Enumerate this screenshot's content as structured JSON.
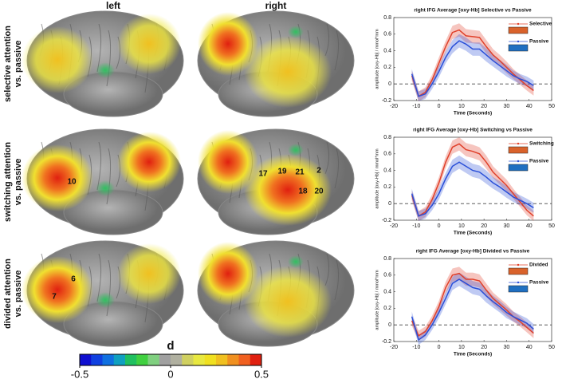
{
  "figure": {
    "columns": [
      "left",
      "right"
    ],
    "rows": [
      [
        "selective attention",
        "vs. passive"
      ],
      [
        "switching attention",
        "vs. passive"
      ],
      [
        "divided attention",
        "vs. passive"
      ]
    ],
    "brain_labels": [
      [
        "10"
      ],
      [
        "17",
        "19",
        "21",
        "2",
        "18",
        "20"
      ],
      [
        "6",
        "7"
      ]
    ]
  },
  "colorbar": {
    "label": "d",
    "lim": [
      -0.5,
      0.5
    ],
    "ticks": [
      -0.5,
      0,
      0.5
    ],
    "colors": [
      "#1010d0",
      "#1040e0",
      "#1070e0",
      "#10a0c0",
      "#20c060",
      "#40d040",
      "#80d080",
      "#a0a0a0",
      "#b0b0a0",
      "#d0d060",
      "#e8e840",
      "#f0e020",
      "#f0c020",
      "#f09020",
      "#f06020",
      "#e02010"
    ]
  },
  "chart_data": [
    {
      "type": "line",
      "title": "right IFG Average [oxy-Hb] Selective vs Passive",
      "x_label": "Time (Seconds)",
      "y_label": "amplitude [oxy-Hb] / mmol*mm",
      "x": [
        -12,
        -9,
        -6,
        -3,
        0,
        3,
        6,
        9,
        12,
        15,
        18,
        21,
        24,
        27,
        30,
        33,
        36,
        39,
        42
      ],
      "series": [
        {
          "name": "Selective",
          "color": "#e0402a",
          "patch_color": "#d9622b",
          "values": [
            0.1,
            -0.15,
            -0.1,
            0.05,
            0.25,
            0.45,
            0.62,
            0.65,
            0.58,
            0.57,
            0.56,
            0.45,
            0.35,
            0.28,
            0.2,
            0.12,
            0.05,
            -0.02,
            -0.08
          ],
          "errors": [
            0.06,
            0.06,
            0.06,
            0.06,
            0.07,
            0.07,
            0.08,
            0.08,
            0.08,
            0.08,
            0.08,
            0.08,
            0.07,
            0.07,
            0.07,
            0.06,
            0.06,
            0.06,
            0.06
          ]
        },
        {
          "name": "Passive",
          "color": "#2a4fd8",
          "patch_color": "#1f6fc1",
          "values": [
            0.12,
            -0.15,
            -0.12,
            0.0,
            0.15,
            0.32,
            0.45,
            0.52,
            0.48,
            0.42,
            0.42,
            0.35,
            0.28,
            0.22,
            0.16,
            0.1,
            0.06,
            0.03,
            -0.02
          ],
          "errors": [
            0.06,
            0.06,
            0.06,
            0.06,
            0.07,
            0.07,
            0.08,
            0.08,
            0.08,
            0.08,
            0.08,
            0.08,
            0.07,
            0.07,
            0.07,
            0.06,
            0.06,
            0.06,
            0.06
          ]
        }
      ],
      "xlim": [
        -20,
        50
      ],
      "xticks": [
        -20,
        -10,
        0,
        10,
        20,
        30,
        40,
        50
      ],
      "ylim": [
        -0.2,
        0.8
      ],
      "yticks": [
        -0.2,
        0,
        0.2,
        0.4,
        0.6,
        0.8
      ],
      "hline": 0
    },
    {
      "type": "line",
      "title": "right IFG Average [oxy-Hb] Switching vs Passive",
      "x_label": "Time (Seconds)",
      "y_label": "amplitude [oxy-Hb] / mmol*mm",
      "x": [
        -12,
        -9,
        -6,
        -3,
        0,
        3,
        6,
        9,
        12,
        15,
        18,
        21,
        24,
        27,
        30,
        33,
        36,
        39,
        42
      ],
      "series": [
        {
          "name": "Switching",
          "color": "#e0402a",
          "patch_color": "#d9622b",
          "values": [
            0.1,
            -0.15,
            -0.1,
            0.05,
            0.25,
            0.5,
            0.68,
            0.72,
            0.65,
            0.63,
            0.6,
            0.5,
            0.38,
            0.3,
            0.22,
            0.12,
            0.02,
            -0.08,
            -0.15
          ],
          "errors": [
            0.06,
            0.06,
            0.06,
            0.06,
            0.07,
            0.07,
            0.08,
            0.08,
            0.08,
            0.08,
            0.08,
            0.08,
            0.07,
            0.07,
            0.07,
            0.06,
            0.06,
            0.06,
            0.06
          ]
        },
        {
          "name": "Passive",
          "color": "#2a4fd8",
          "patch_color": "#1f6fc1",
          "values": [
            0.12,
            -0.15,
            -0.12,
            -0.02,
            0.12,
            0.3,
            0.45,
            0.5,
            0.45,
            0.4,
            0.38,
            0.32,
            0.25,
            0.2,
            0.14,
            0.08,
            0.04,
            0.0,
            -0.05
          ],
          "errors": [
            0.06,
            0.06,
            0.06,
            0.06,
            0.07,
            0.07,
            0.08,
            0.08,
            0.08,
            0.08,
            0.08,
            0.08,
            0.07,
            0.07,
            0.07,
            0.06,
            0.06,
            0.06,
            0.06
          ]
        }
      ],
      "xlim": [
        -20,
        50
      ],
      "xticks": [
        -20,
        -10,
        0,
        10,
        20,
        30,
        40,
        50
      ],
      "ylim": [
        -0.2,
        0.8
      ],
      "yticks": [
        -0.2,
        0,
        0.2,
        0.4,
        0.6,
        0.8
      ],
      "hline": 0
    },
    {
      "type": "line",
      "title": "right IFG Average [oxy-Hb] Divided vs Passive",
      "x_label": "Time (Seconds)",
      "y_label": "amplitude [oxy-Hb] / mmol*mm",
      "x": [
        -12,
        -9,
        -6,
        -3,
        0,
        3,
        6,
        9,
        12,
        15,
        18,
        21,
        24,
        27,
        30,
        33,
        36,
        39,
        42
      ],
      "series": [
        {
          "name": "Divided",
          "color": "#e0402a",
          "patch_color": "#d9622b",
          "values": [
            0.05,
            -0.13,
            -0.08,
            0.05,
            0.22,
            0.45,
            0.6,
            0.62,
            0.55,
            0.55,
            0.53,
            0.42,
            0.32,
            0.25,
            0.18,
            0.1,
            0.04,
            -0.03,
            -0.1
          ],
          "errors": [
            0.06,
            0.06,
            0.06,
            0.06,
            0.07,
            0.07,
            0.08,
            0.08,
            0.08,
            0.08,
            0.08,
            0.08,
            0.07,
            0.07,
            0.07,
            0.06,
            0.06,
            0.06,
            0.06
          ]
        },
        {
          "name": "Passive",
          "color": "#2a4fd8",
          "patch_color": "#1f6fc1",
          "values": [
            0.1,
            -0.18,
            -0.12,
            0.0,
            0.15,
            0.32,
            0.5,
            0.55,
            0.5,
            0.45,
            0.43,
            0.35,
            0.28,
            0.22,
            0.15,
            0.1,
            0.06,
            0.02,
            -0.05
          ],
          "errors": [
            0.06,
            0.06,
            0.06,
            0.06,
            0.07,
            0.07,
            0.08,
            0.08,
            0.08,
            0.08,
            0.08,
            0.08,
            0.07,
            0.07,
            0.07,
            0.06,
            0.06,
            0.06,
            0.06
          ]
        }
      ],
      "xlim": [
        -20,
        50
      ],
      "xticks": [
        -20,
        -10,
        0,
        10,
        20,
        30,
        40,
        50
      ],
      "ylim": [
        -0.2,
        0.8
      ],
      "yticks": [
        -0.2,
        0,
        0.2,
        0.4,
        0.6,
        0.8
      ],
      "hline": 0
    }
  ]
}
